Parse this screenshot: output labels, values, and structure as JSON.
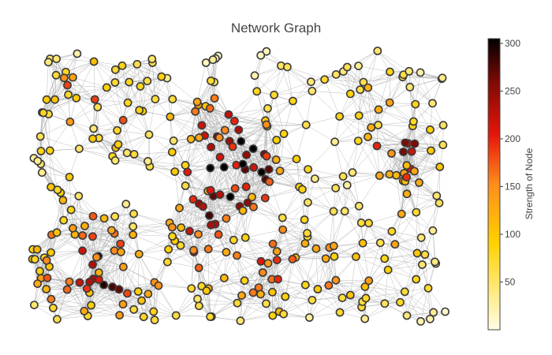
{
  "chart_data": {
    "type": "scatter",
    "title": "Network Graph",
    "node_count": 400,
    "node_strength_range": [
      0,
      305
    ],
    "colorscale": "YlOrRd",
    "colorscale_reversed": true,
    "colorbar": {
      "title": "Strength of Node",
      "ticks": [
        "50",
        "100",
        "150",
        "200",
        "250",
        "300"
      ],
      "tick_values": [
        50,
        100,
        150,
        200,
        250,
        300
      ],
      "range": [
        0,
        305
      ],
      "stops": [
        "#fffde6",
        "#ffd100",
        "#ff8d1c",
        "#e5160b",
        "#7e0a05",
        "#000000"
      ]
    },
    "edge_color": "#a6a6a6",
    "node_outline_color": "#3a3a3a",
    "grid": false,
    "axes_visible": false,
    "legend": "none",
    "colorbar_placement": "right"
  }
}
